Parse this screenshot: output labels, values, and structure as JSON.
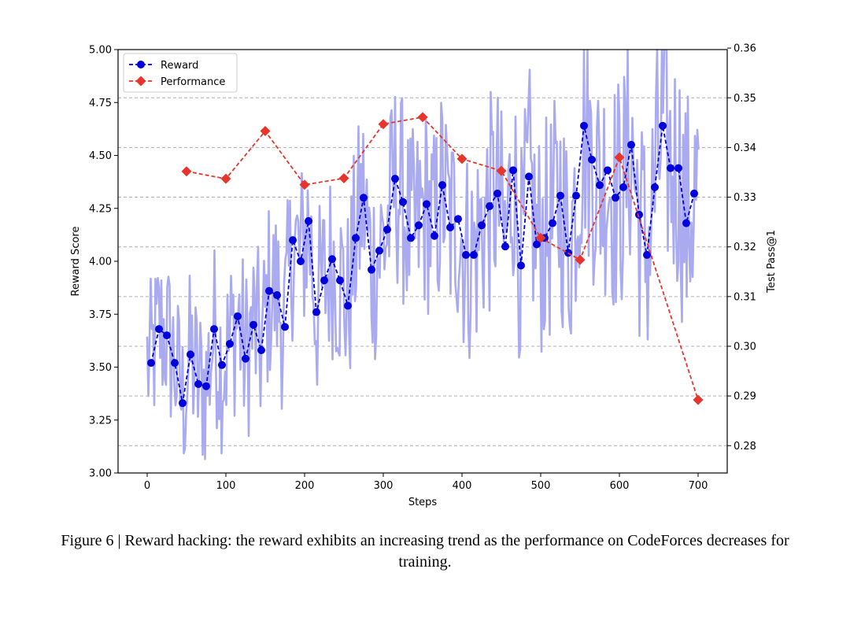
{
  "chart_data": {
    "type": "line",
    "xlabel": "Steps",
    "ylabel": "Reward Score",
    "y2label": "Test Pass@1",
    "xlim": [
      -37,
      737
    ],
    "ylim": [
      3.0,
      5.0
    ],
    "y2lim": [
      0.2745,
      0.3597
    ],
    "x_ticks": [
      0,
      100,
      200,
      300,
      400,
      500,
      600,
      700
    ],
    "y_ticks": [
      3.0,
      3.25,
      3.5,
      3.75,
      4.0,
      4.25,
      4.5,
      4.75,
      5.0
    ],
    "y2_ticks": [
      0.28,
      0.29,
      0.3,
      0.31,
      0.32,
      0.33,
      0.34,
      0.35,
      0.36
    ],
    "grid": "horizontal dashed at right-axis ticks",
    "legend_position": "top-left",
    "colors": {
      "reward": "#0000dd",
      "performance": "#e8352b",
      "raw_reward": "#aaaaf0",
      "grid": "#b0b0b0"
    },
    "series": [
      {
        "name": "Reward",
        "axis": "left",
        "marker": "circle",
        "x": [
          5,
          15,
          25,
          35,
          45,
          55,
          65,
          75,
          85,
          95,
          105,
          115,
          125,
          135,
          145,
          155,
          165,
          175,
          185,
          195,
          205,
          215,
          225,
          235,
          245,
          255,
          265,
          275,
          285,
          295,
          305,
          315,
          325,
          335,
          345,
          355,
          365,
          375,
          385,
          395,
          405,
          415,
          425,
          435,
          445,
          455,
          465,
          475,
          485,
          495,
          505,
          515,
          525,
          535,
          545,
          555,
          565,
          575,
          585,
          595,
          605,
          615,
          625,
          635,
          645,
          655,
          665,
          675,
          685,
          695
        ],
        "values": [
          3.52,
          3.68,
          3.65,
          3.52,
          3.33,
          3.56,
          3.42,
          3.41,
          3.68,
          3.51,
          3.61,
          3.74,
          3.54,
          3.7,
          3.58,
          3.86,
          3.84,
          3.69,
          4.1,
          4.0,
          4.19,
          3.76,
          3.91,
          4.01,
          3.91,
          3.79,
          4.11,
          4.3,
          3.96,
          4.05,
          4.15,
          4.39,
          4.28,
          4.11,
          4.17,
          4.27,
          4.12,
          4.36,
          4.16,
          4.2,
          4.03,
          4.03,
          4.17,
          4.26,
          4.32,
          4.07,
          4.43,
          3.98,
          4.4,
          4.08,
          4.11,
          4.18,
          4.31,
          4.04,
          4.31,
          4.64,
          4.48,
          4.36,
          4.43,
          4.3,
          4.35,
          4.55,
          4.22,
          4.03,
          4.35,
          4.64,
          4.44,
          4.44,
          4.18,
          4.32
        ]
      },
      {
        "name": "Performance",
        "axis": "right",
        "marker": "diamond",
        "x": [
          50,
          100,
          150,
          200,
          250,
          300,
          350,
          400,
          450,
          500,
          550,
          600,
          700
        ],
        "values": [
          0.3352,
          0.3337,
          0.3433,
          0.3325,
          0.3338,
          0.3447,
          0.3461,
          0.3377,
          0.3353,
          0.3218,
          0.3174,
          0.338,
          0.2892
        ]
      }
    ]
  },
  "caption": "Figure 6 | Reward hacking: the reward exhibits an increasing trend as the performance on CodeForces decreases for training."
}
